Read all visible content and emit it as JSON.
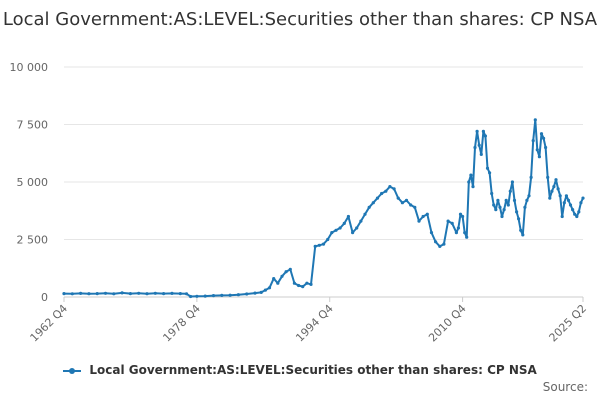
{
  "chart_data": {
    "type": "line",
    "title": "Local Government:AS:LEVEL:Securities other than shares: CP NSA",
    "xlabel": "",
    "ylabel": "",
    "x_tick_labels": [
      "1962 Q4",
      "1978 Q4",
      "1994 Q4",
      "2010 Q4",
      "2025 Q2"
    ],
    "y_tick_labels": [
      "0",
      "2 500",
      "5 000",
      "7 500",
      "10 000"
    ],
    "y_ticks": [
      0,
      2500,
      5000,
      7500,
      10000
    ],
    "ylim": [
      0,
      10000
    ],
    "xlim": [
      1962.75,
      2025.25
    ],
    "grid": true,
    "legend_position": "bottom",
    "series": [
      {
        "name": "Local Government:AS:LEVEL:Securities other than shares: CP NSA",
        "color": "#1f77b4",
        "x": [
          1962.75,
          1963.75,
          1964.75,
          1965.75,
          1966.75,
          1967.75,
          1968.75,
          1969.75,
          1970.75,
          1971.75,
          1972.75,
          1973.75,
          1974.75,
          1975.75,
          1976.75,
          1977.5,
          1978.0,
          1978.75,
          1979.75,
          1980.75,
          1981.75,
          1982.75,
          1983.75,
          1984.75,
          1985.75,
          1986.5,
          1987.0,
          1987.5,
          1988.0,
          1988.5,
          1989.0,
          1989.5,
          1990.0,
          1990.5,
          1991.0,
          1991.5,
          1992.0,
          1992.5,
          1993.0,
          1993.5,
          1994.0,
          1994.5,
          1995.0,
          1995.5,
          1996.0,
          1996.5,
          1997.0,
          1997.5,
          1998.0,
          1998.5,
          1999.0,
          1999.5,
          2000.0,
          2000.5,
          2001.0,
          2001.5,
          2002.0,
          2002.5,
          2003.0,
          2003.5,
          2004.0,
          2004.5,
          2005.0,
          2005.5,
          2006.0,
          2006.5,
          2007.0,
          2007.5,
          2008.0,
          2008.5,
          2009.0,
          2009.5,
          2010.0,
          2010.25,
          2010.5,
          2010.75,
          2011.0,
          2011.25,
          2011.5,
          2011.75,
          2012.0,
          2012.25,
          2012.5,
          2012.75,
          2013.0,
          2013.25,
          2013.5,
          2013.75,
          2014.0,
          2014.25,
          2014.5,
          2014.75,
          2015.0,
          2015.25,
          2015.5,
          2015.75,
          2016.0,
          2016.25,
          2016.5,
          2016.75,
          2017.0,
          2017.25,
          2017.5,
          2017.75,
          2018.0,
          2018.25,
          2018.5,
          2018.75,
          2019.0,
          2019.25,
          2019.5,
          2019.75,
          2020.0,
          2020.25,
          2020.5,
          2020.75,
          2021.0,
          2021.25,
          2021.5,
          2021.75,
          2022.0,
          2022.25,
          2022.5,
          2022.75,
          2023.0,
          2023.25,
          2023.5,
          2023.75,
          2024.0,
          2024.25,
          2024.5,
          2024.75,
          2025.0,
          2025.25
        ],
        "values": [
          150,
          140,
          155,
          145,
          150,
          160,
          140,
          180,
          150,
          160,
          145,
          160,
          150,
          155,
          150,
          140,
          20,
          30,
          40,
          60,
          70,
          80,
          100,
          130,
          170,
          200,
          300,
          400,
          800,
          600,
          900,
          1100,
          1200,
          600,
          500,
          450,
          600,
          550,
          2200,
          2250,
          2300,
          2500,
          2800,
          2900,
          3000,
          3200,
          3500,
          2800,
          3000,
          3300,
          3600,
          3900,
          4100,
          4300,
          4500,
          4600,
          4800,
          4700,
          4300,
          4100,
          4200,
          4000,
          3900,
          3300,
          3500,
          3600,
          2800,
          2400,
          2200,
          2300,
          3300,
          3200,
          2800,
          3000,
          3600,
          3500,
          2800,
          2600,
          5000,
          5300,
          4800,
          6500,
          7200,
          6600,
          6200,
          7200,
          7000,
          5600,
          5400,
          4500,
          4000,
          3800,
          4200,
          3900,
          3500,
          3800,
          4200,
          4000,
          4600,
          5000,
          4200,
          3700,
          3400,
          2900,
          2700,
          3900,
          4200,
          4400,
          5200,
          6800,
          7700,
          6400,
          6100,
          7100,
          6900,
          6500,
          5200,
          4300,
          4600,
          4800,
          5100,
          4700,
          4400,
          3500,
          4100,
          4400,
          4200,
          4000,
          3800,
          3600,
          3500,
          3700,
          4100,
          4300
        ]
      }
    ]
  },
  "source_label": "Source:"
}
